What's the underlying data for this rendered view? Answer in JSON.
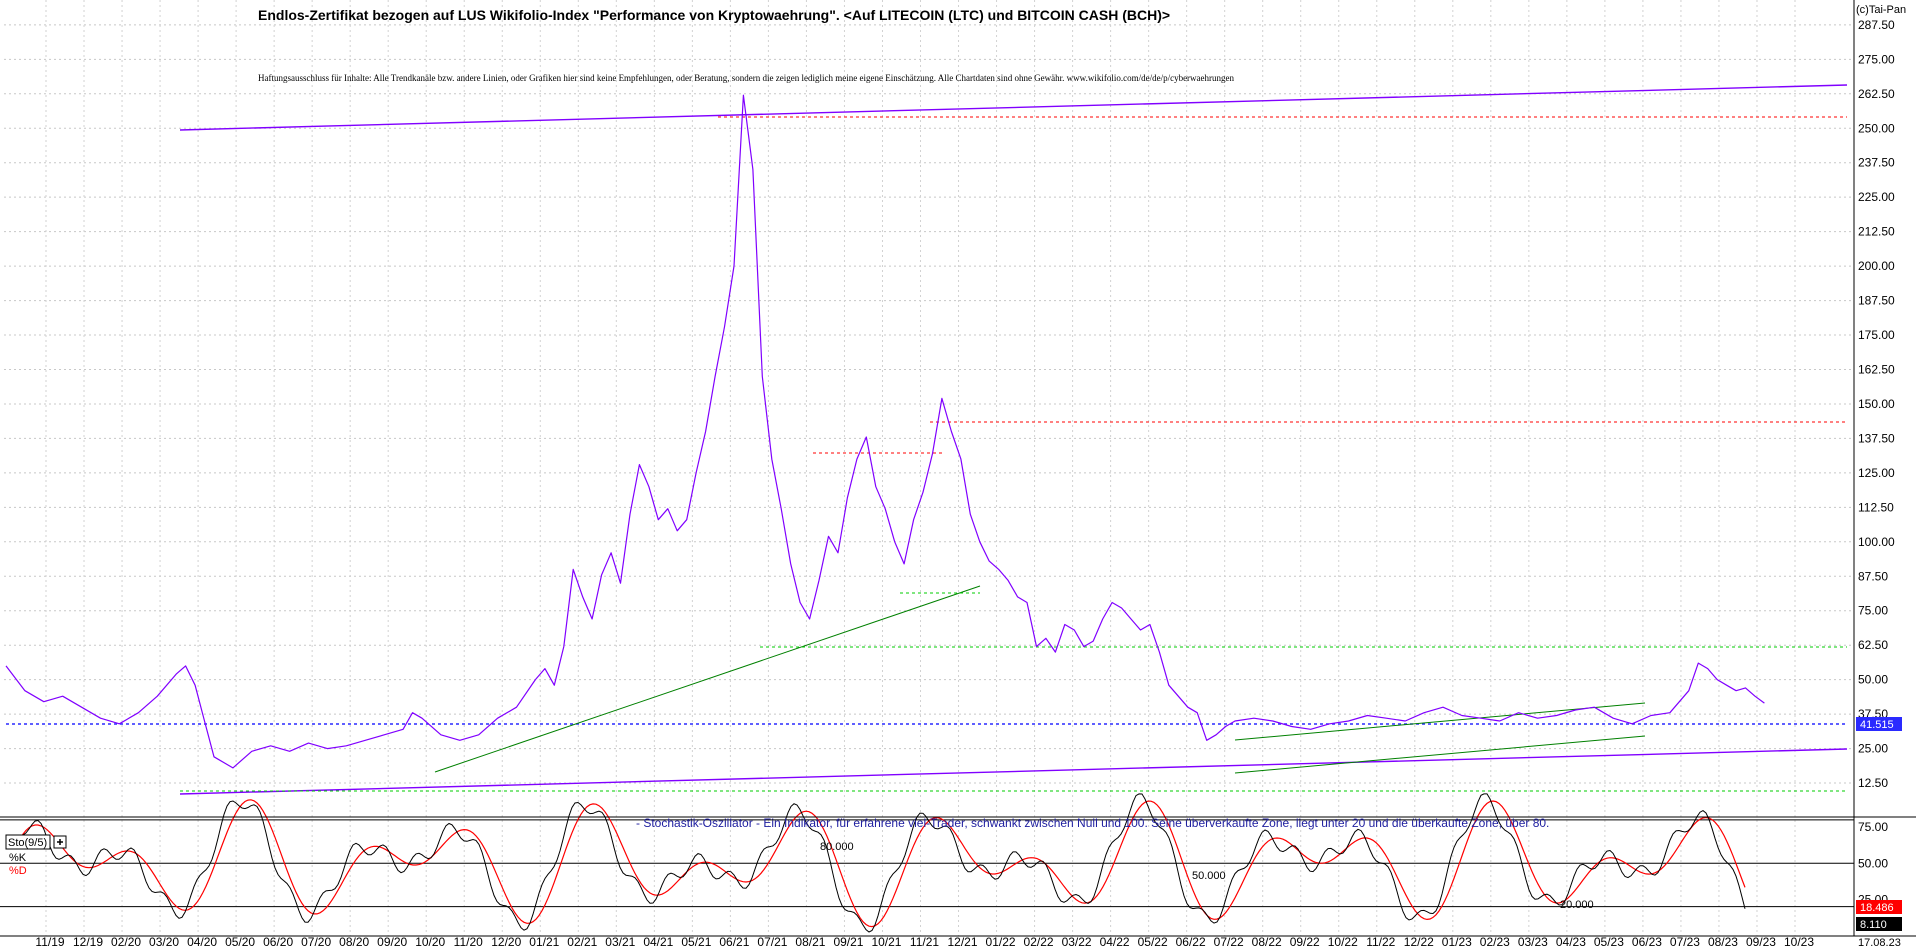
{
  "header": {
    "title": "Endlos-Zertifikat bezogen auf LUS Wikifolio-Index \"Performance von Kryptowaehrung\". <Auf LITECOIN (LTC) und BITCOIN CASH (BCH)>",
    "disclaimer": "Haftungsausschluss für Inhalte: Alle Trendkanäle bzw. andere Linien, oder Grafiken hier sind keine Empfehlungen, oder Beratung, sondern die zeigen lediglich meine eigene Einschätzung. Alle Chartdaten sind ohne Gewähr.  www.wikifolio.com/de/de/p/cyberwaehrungen",
    "brand": "(c)Tai-Pan"
  },
  "oscillator": {
    "caption": "- Stochastik-Oszillator - Ein Indikator, für erfahrene viel-Trader, schwankt zwischen Null und 100. Seine überverkaufte Zone, liegt unter 20 und die überkaufte Zone, über 80.",
    "name": "Sto(9/5)",
    "k_label": "%K",
    "d_label": "%D",
    "level_80": "80.000",
    "level_50": "50.000",
    "level_20": "20.000"
  },
  "chart_data": [
    {
      "type": "line",
      "title": "Endlos-Zertifikat bezogen auf LUS Wikifolio-Index \"Performance von Kryptowaehrung\". <Auf LITECOIN (LTC) und BITCOIN CASH (BCH)>",
      "ylim": [
        0,
        300
      ],
      "y_ticks": [
        "287.50",
        "275.00",
        "262.50",
        "250.00",
        "237.50",
        "225.00",
        "212.50",
        "200.00",
        "187.50",
        "175.00",
        "162.50",
        "150.00",
        "137.50",
        "125.00",
        "112.50",
        "100.00",
        "87.50",
        "75.00",
        "62.50",
        "50.00",
        "37.50",
        "25.00",
        "12.50"
      ],
      "last_value": "41.515",
      "series": [
        {
          "color": "#8000ff",
          "points": [
            [
              0,
              55
            ],
            [
              2,
              46
            ],
            [
              4,
              42
            ],
            [
              6,
              44
            ],
            [
              8,
              40
            ],
            [
              10,
              36
            ],
            [
              12,
              34
            ],
            [
              14,
              38
            ],
            [
              16,
              44
            ],
            [
              18,
              52
            ],
            [
              19,
              55
            ],
            [
              20,
              48
            ],
            [
              21,
              35
            ],
            [
              22,
              22
            ],
            [
              24,
              18
            ],
            [
              26,
              24
            ],
            [
              28,
              26
            ],
            [
              30,
              24
            ],
            [
              32,
              27
            ],
            [
              34,
              25
            ],
            [
              36,
              26
            ],
            [
              38,
              28
            ],
            [
              40,
              30
            ],
            [
              42,
              32
            ],
            [
              43,
              38
            ],
            [
              44,
              36
            ],
            [
              46,
              30
            ],
            [
              48,
              28
            ],
            [
              50,
              30
            ],
            [
              52,
              36
            ],
            [
              54,
              40
            ],
            [
              56,
              50
            ],
            [
              57,
              54
            ],
            [
              58,
              48
            ],
            [
              59,
              62
            ],
            [
              60,
              90
            ],
            [
              61,
              80
            ],
            [
              62,
              72
            ],
            [
              63,
              88
            ],
            [
              64,
              96
            ],
            [
              65,
              85
            ],
            [
              66,
              110
            ],
            [
              67,
              128
            ],
            [
              68,
              120
            ],
            [
              69,
              108
            ],
            [
              70,
              112
            ],
            [
              71,
              104
            ],
            [
              72,
              108
            ],
            [
              73,
              125
            ],
            [
              74,
              140
            ],
            [
              75,
              160
            ],
            [
              76,
              178
            ],
            [
              77,
              200
            ],
            [
              78,
              262
            ],
            [
              79,
              235
            ],
            [
              80,
              160
            ],
            [
              81,
              130
            ],
            [
              82,
              112
            ],
            [
              83,
              92
            ],
            [
              84,
              78
            ],
            [
              85,
              72
            ],
            [
              86,
              86
            ],
            [
              87,
              102
            ],
            [
              88,
              96
            ],
            [
              89,
              116
            ],
            [
              90,
              130
            ],
            [
              91,
              138
            ],
            [
              92,
              120
            ],
            [
              93,
              112
            ],
            [
              94,
              100
            ],
            [
              95,
              92
            ],
            [
              96,
              108
            ],
            [
              97,
              118
            ],
            [
              98,
              132
            ],
            [
              99,
              152
            ],
            [
              100,
              140
            ],
            [
              101,
              130
            ],
            [
              102,
              110
            ],
            [
              103,
              100
            ],
            [
              104,
              93
            ],
            [
              105,
              90
            ],
            [
              106,
              86
            ],
            [
              107,
              80
            ],
            [
              108,
              78
            ],
            [
              109,
              62
            ],
            [
              110,
              65
            ],
            [
              111,
              60
            ],
            [
              112,
              70
            ],
            [
              113,
              68
            ],
            [
              114,
              62
            ],
            [
              115,
              64
            ],
            [
              116,
              72
            ],
            [
              117,
              78
            ],
            [
              118,
              76
            ],
            [
              119,
              72
            ],
            [
              120,
              68
            ],
            [
              121,
              70
            ],
            [
              122,
              60
            ],
            [
              123,
              48
            ],
            [
              124,
              44
            ],
            [
              125,
              40
            ],
            [
              126,
              38
            ],
            [
              127,
              28
            ],
            [
              128,
              30
            ],
            [
              129,
              33
            ],
            [
              130,
              35
            ],
            [
              132,
              36
            ],
            [
              134,
              35
            ],
            [
              136,
              33
            ],
            [
              138,
              32
            ],
            [
              140,
              34
            ],
            [
              142,
              35
            ],
            [
              144,
              37
            ],
            [
              146,
              36
            ],
            [
              148,
              35
            ],
            [
              150,
              38
            ],
            [
              152,
              40
            ],
            [
              154,
              37
            ],
            [
              156,
              36
            ],
            [
              158,
              35
            ],
            [
              160,
              38
            ],
            [
              162,
              36
            ],
            [
              164,
              37
            ],
            [
              166,
              39
            ],
            [
              168,
              40
            ],
            [
              170,
              36
            ],
            [
              172,
              34
            ],
            [
              174,
              37
            ],
            [
              176,
              38
            ],
            [
              178,
              46
            ],
            [
              179,
              56
            ],
            [
              180,
              54
            ],
            [
              181,
              50
            ],
            [
              182,
              48
            ],
            [
              183,
              46
            ],
            [
              184,
              47
            ],
            [
              185,
              44
            ],
            [
              186,
              41.5
            ]
          ]
        }
      ]
    },
    {
      "type": "line",
      "title": "Sto(9/5)",
      "ylim": [
        0,
        100
      ],
      "y_ticks": [
        "75.00",
        "50.00",
        "25.00"
      ],
      "last_values": [
        "18.486",
        "8.110"
      ],
      "series": [
        {
          "name": "%K",
          "color": "#000000"
        },
        {
          "name": "%D",
          "color": "#ff0000"
        }
      ]
    }
  ],
  "x_axis": {
    "labels": [
      "11/19",
      "12/19",
      "02/20",
      "03/20",
      "04/20",
      "05/20",
      "06/20",
      "07/20",
      "08/20",
      "09/20",
      "10/20",
      "11/20",
      "12/20",
      "01/21",
      "02/21",
      "03/21",
      "04/21",
      "05/21",
      "06/21",
      "07/21",
      "08/21",
      "09/21",
      "10/21",
      "11/21",
      "12/21",
      "01/22",
      "02/22",
      "03/22",
      "04/22",
      "05/22",
      "06/22",
      "07/22",
      "08/22",
      "09/22",
      "10/22",
      "11/22",
      "12/22",
      "01/23",
      "02/23",
      "03/23",
      "04/23",
      "05/23",
      "06/23",
      "07/23",
      "08/23",
      "09/23",
      "10/23"
    ],
    "current_date": "17.08.23"
  }
}
